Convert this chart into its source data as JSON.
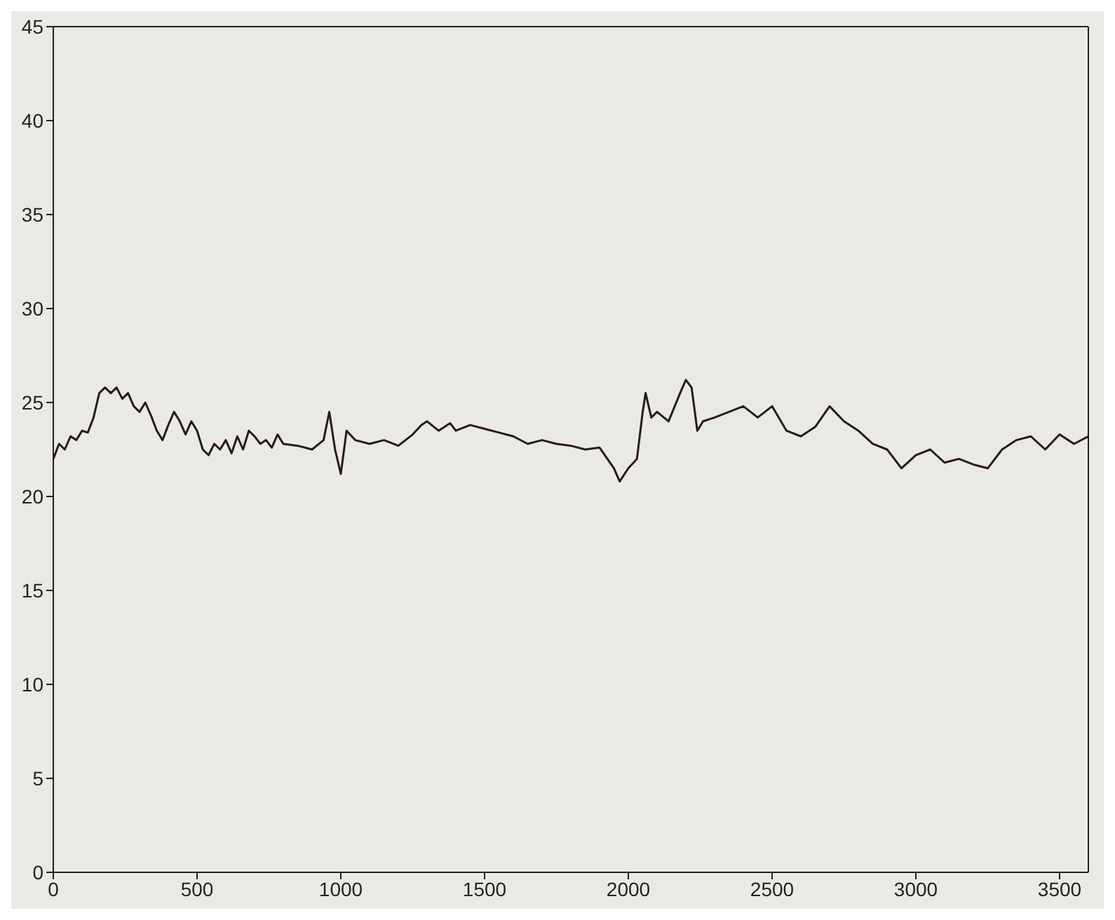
{
  "chart_data": {
    "type": "line",
    "xlim": [
      0,
      3600
    ],
    "xticks": [
      0,
      500,
      1000,
      1500,
      2000,
      2500,
      3000,
      3500
    ],
    "ylim": [
      0,
      45
    ],
    "yticks": [
      0,
      5,
      10,
      15,
      20,
      25,
      30,
      35,
      40,
      45
    ],
    "grid": false,
    "legend": false,
    "marker": "none",
    "line_style": "solid",
    "x": [
      0,
      20,
      40,
      60,
      80,
      100,
      120,
      140,
      160,
      180,
      200,
      220,
      240,
      260,
      280,
      300,
      320,
      340,
      360,
      380,
      400,
      420,
      440,
      460,
      480,
      500,
      520,
      540,
      560,
      580,
      600,
      620,
      640,
      660,
      680,
      700,
      720,
      740,
      760,
      780,
      800,
      850,
      900,
      940,
      960,
      980,
      1000,
      1020,
      1050,
      1100,
      1150,
      1200,
      1250,
      1280,
      1300,
      1340,
      1380,
      1400,
      1450,
      1500,
      1550,
      1600,
      1650,
      1700,
      1750,
      1800,
      1850,
      1900,
      1950,
      1970,
      2000,
      2030,
      2050,
      2060,
      2080,
      2100,
      2140,
      2180,
      2200,
      2220,
      2240,
      2260,
      2300,
      2350,
      2400,
      2450,
      2500,
      2550,
      2600,
      2650,
      2700,
      2750,
      2800,
      2850,
      2900,
      2950,
      3000,
      3050,
      3100,
      3150,
      3200,
      3250,
      3300,
      3350,
      3400,
      3450,
      3500,
      3550,
      3600
    ],
    "series": [
      {
        "color": "#2a1a1a",
        "values": [
          22,
          22.8,
          22.5,
          23.2,
          23,
          23.5,
          23.4,
          24.2,
          25.5,
          25.8,
          25.5,
          25.8,
          25.2,
          25.5,
          24.8,
          24.5,
          25,
          24.3,
          23.5,
          23,
          23.8,
          24.5,
          24,
          23.3,
          24,
          23.5,
          22.5,
          22.2,
          22.8,
          22.5,
          23,
          22.3,
          23.2,
          22.5,
          23.5,
          23.2,
          22.8,
          23,
          22.6,
          23.3,
          22.8,
          22.7,
          22.5,
          23,
          24.5,
          22.5,
          21.2,
          23.5,
          23,
          22.8,
          23,
          22.7,
          23.3,
          23.8,
          24,
          23.5,
          23.9,
          23.5,
          23.8,
          23.6,
          23.4,
          23.2,
          22.8,
          23,
          22.8,
          22.7,
          22.5,
          22.6,
          21.5,
          20.8,
          21.5,
          22,
          24.5,
          25.5,
          24.2,
          24.5,
          24,
          25.5,
          26.2,
          25.8,
          23.5,
          24,
          24.2,
          24.5,
          24.8,
          24.2,
          24.8,
          23.5,
          23.2,
          23.7,
          24.8,
          24,
          23.5,
          22.8,
          22.5,
          21.5,
          22.2,
          22.5,
          21.8,
          22,
          21.7,
          21.5,
          22.5,
          23,
          23.2,
          22.5,
          23.3,
          22.8,
          23.2
        ]
      }
    ]
  }
}
